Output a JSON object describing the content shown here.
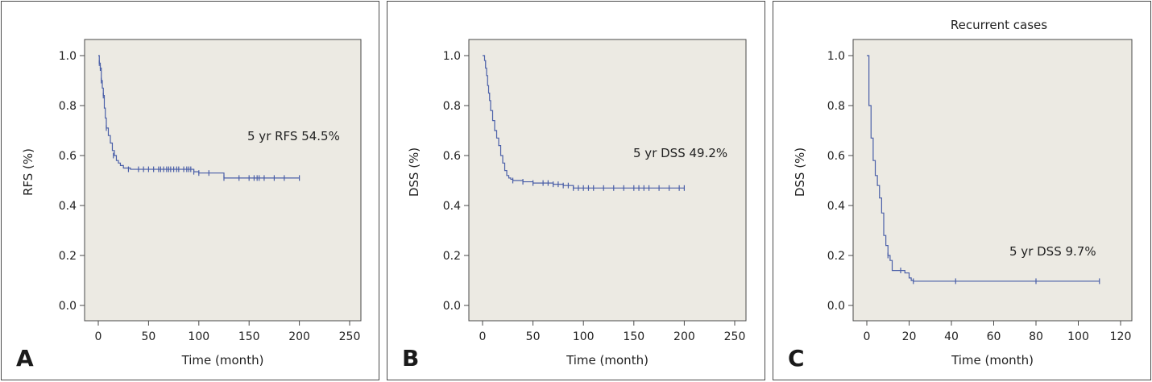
{
  "chart_data": [
    {
      "type": "line",
      "step": true,
      "panel_label": "A",
      "title": "",
      "xlabel": "Time (month)",
      "ylabel": "RFS (%)",
      "xlim": [
        0,
        250
      ],
      "ylim": [
        0,
        1
      ],
      "xticks": [
        0,
        50,
        100,
        150,
        200,
        250
      ],
      "yticks": [
        "0.0",
        "0.2",
        "0.4",
        "0.6",
        "0.8",
        "1.0"
      ],
      "grid": false,
      "annotation": "5 yr RFS 54.5%",
      "series": [
        {
          "x": [
            0,
            1,
            2,
            3,
            4,
            5,
            6,
            7,
            8,
            10,
            12,
            14,
            16,
            18,
            20,
            22,
            25,
            28,
            32,
            40,
            50,
            60,
            70,
            80,
            90,
            95,
            100,
            110,
            115,
            125,
            200
          ],
          "y": [
            1.0,
            0.97,
            0.95,
            0.9,
            0.87,
            0.84,
            0.79,
            0.75,
            0.71,
            0.68,
            0.65,
            0.62,
            0.6,
            0.58,
            0.57,
            0.56,
            0.55,
            0.55,
            0.545,
            0.545,
            0.545,
            0.545,
            0.545,
            0.545,
            0.545,
            0.535,
            0.53,
            0.53,
            0.53,
            0.51,
            0.51
          ],
          "censored_x": [
            1,
            2,
            3,
            5,
            8,
            15,
            30,
            40,
            45,
            50,
            55,
            60,
            62,
            65,
            68,
            70,
            72,
            75,
            78,
            80,
            85,
            88,
            90,
            92,
            95,
            100,
            110,
            125,
            140,
            150,
            155,
            158,
            160,
            165,
            175,
            185,
            200
          ],
          "censored_y": [
            0.97,
            0.95,
            0.9,
            0.84,
            0.71,
            0.6,
            0.545,
            0.545,
            0.545,
            0.545,
            0.545,
            0.545,
            0.545,
            0.545,
            0.545,
            0.545,
            0.545,
            0.545,
            0.545,
            0.545,
            0.545,
            0.545,
            0.545,
            0.545,
            0.535,
            0.53,
            0.53,
            0.51,
            0.51,
            0.51,
            0.51,
            0.51,
            0.51,
            0.51,
            0.51,
            0.51,
            0.51
          ]
        }
      ]
    },
    {
      "type": "line",
      "step": true,
      "panel_label": "B",
      "title": "",
      "xlabel": "Time (month)",
      "ylabel": "DSS (%)",
      "xlim": [
        0,
        250
      ],
      "ylim": [
        0,
        1
      ],
      "xticks": [
        0,
        50,
        100,
        150,
        200,
        250
      ],
      "yticks": [
        "0.0",
        "0.2",
        "0.4",
        "0.6",
        "0.8",
        "1.0"
      ],
      "grid": false,
      "annotation": "5 yr DSS 49.2%",
      "series": [
        {
          "x": [
            0,
            2,
            3,
            4,
            5,
            6,
            7,
            8,
            10,
            12,
            14,
            16,
            18,
            20,
            22,
            24,
            26,
            28,
            30,
            35,
            40,
            50,
            60,
            70,
            80,
            90,
            100,
            200
          ],
          "y": [
            1.0,
            0.98,
            0.95,
            0.92,
            0.88,
            0.85,
            0.82,
            0.78,
            0.74,
            0.7,
            0.67,
            0.64,
            0.6,
            0.57,
            0.54,
            0.52,
            0.51,
            0.505,
            0.5,
            0.5,
            0.495,
            0.49,
            0.49,
            0.485,
            0.48,
            0.47,
            0.47,
            0.47
          ],
          "censored_x": [
            30,
            40,
            50,
            60,
            65,
            70,
            75,
            80,
            85,
            90,
            95,
            100,
            105,
            110,
            120,
            130,
            140,
            150,
            155,
            160,
            165,
            175,
            185,
            195,
            200
          ],
          "censored_y": [
            0.5,
            0.495,
            0.49,
            0.49,
            0.49,
            0.485,
            0.485,
            0.48,
            0.48,
            0.47,
            0.47,
            0.47,
            0.47,
            0.47,
            0.47,
            0.47,
            0.47,
            0.47,
            0.47,
            0.47,
            0.47,
            0.47,
            0.47,
            0.47,
            0.47
          ]
        }
      ]
    },
    {
      "type": "line",
      "step": true,
      "panel_label": "C",
      "title": "Recurrent cases",
      "xlabel": "Time (month)",
      "ylabel": "DSS (%)",
      "xlim": [
        0,
        120
      ],
      "ylim": [
        0,
        1
      ],
      "xticks": [
        0,
        20,
        40,
        60,
        80,
        100,
        120
      ],
      "yticks": [
        "0.0",
        "0.2",
        "0.4",
        "0.6",
        "0.8",
        "1.0"
      ],
      "grid": false,
      "annotation": "5 yr DSS 9.7%",
      "series": [
        {
          "x": [
            0,
            1,
            2,
            3,
            4,
            5,
            6,
            7,
            8,
            9,
            10,
            11,
            12,
            14,
            16,
            18,
            20,
            21,
            22,
            110
          ],
          "y": [
            1.0,
            0.8,
            0.67,
            0.58,
            0.52,
            0.48,
            0.43,
            0.37,
            0.28,
            0.24,
            0.2,
            0.18,
            0.14,
            0.14,
            0.14,
            0.13,
            0.11,
            0.1,
            0.097,
            0.097
          ],
          "censored_x": [
            10,
            16,
            22,
            42,
            80,
            110
          ],
          "censored_y": [
            0.2,
            0.14,
            0.097,
            0.097,
            0.097,
            0.097
          ]
        }
      ]
    }
  ]
}
